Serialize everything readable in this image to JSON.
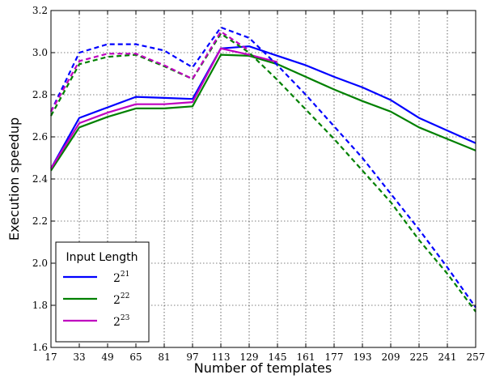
{
  "chart_data": {
    "type": "line",
    "xlabel": "Number of templates",
    "ylabel": "Execution speedup",
    "x": [
      17,
      33,
      49,
      65,
      81,
      97,
      113,
      129,
      145,
      161,
      177,
      193,
      209,
      225,
      241,
      257
    ],
    "xlim": [
      17,
      257
    ],
    "ylim": [
      1.6,
      3.2
    ],
    "yticks": [
      "1.6",
      "1.8",
      "2.0",
      "2.2",
      "2.4",
      "2.6",
      "2.8",
      "3.0",
      "3.2"
    ],
    "xticks": [
      "17",
      "33",
      "49",
      "65",
      "81",
      "97",
      "113",
      "129",
      "145",
      "161",
      "177",
      "193",
      "209",
      "225",
      "241",
      "257"
    ],
    "grid": true,
    "legend": {
      "title": "Input Length",
      "position": "lower-left",
      "entries": [
        {
          "base": "2",
          "exp": "21",
          "color": "#0000ff"
        },
        {
          "base": "2",
          "exp": "22",
          "color": "#008000"
        },
        {
          "base": "2",
          "exp": "23",
          "color": "#bf00bf"
        }
      ]
    },
    "series": [
      {
        "label": "2^21 solid",
        "color": "#0000ff",
        "style": "solid",
        "points": [
          [
            17,
            2.45
          ],
          [
            33,
            2.69
          ],
          [
            49,
            2.74
          ],
          [
            65,
            2.79
          ],
          [
            81,
            2.785
          ],
          [
            97,
            2.78
          ],
          [
            113,
            3.02
          ],
          [
            129,
            3.03
          ],
          [
            145,
            2.985
          ],
          [
            161,
            2.94
          ],
          [
            177,
            2.885
          ],
          [
            193,
            2.835
          ],
          [
            209,
            2.775
          ],
          [
            225,
            2.69
          ],
          [
            241,
            2.63
          ],
          [
            257,
            2.57
          ]
        ]
      },
      {
        "label": "2^22 solid",
        "color": "#008000",
        "style": "solid",
        "points": [
          [
            17,
            2.44
          ],
          [
            33,
            2.645
          ],
          [
            49,
            2.695
          ],
          [
            65,
            2.735
          ],
          [
            81,
            2.735
          ],
          [
            97,
            2.745
          ],
          [
            113,
            2.99
          ],
          [
            129,
            2.985
          ],
          [
            145,
            2.945
          ],
          [
            161,
            2.885
          ],
          [
            177,
            2.825
          ],
          [
            193,
            2.77
          ],
          [
            209,
            2.72
          ],
          [
            225,
            2.645
          ],
          [
            241,
            2.59
          ],
          [
            257,
            2.535
          ]
        ]
      },
      {
        "label": "2^23 solid",
        "color": "#bf00bf",
        "style": "solid",
        "points": [
          [
            17,
            2.45
          ],
          [
            33,
            2.665
          ],
          [
            49,
            2.715
          ],
          [
            65,
            2.755
          ],
          [
            81,
            2.755
          ],
          [
            97,
            2.765
          ],
          [
            113,
            3.02
          ],
          [
            129,
            2.99
          ],
          [
            145,
            2.955
          ]
        ]
      },
      {
        "label": "2^21 dashed",
        "color": "#0000ff",
        "style": "dashed",
        "points": [
          [
            17,
            2.72
          ],
          [
            33,
            3.0
          ],
          [
            49,
            3.04
          ],
          [
            65,
            3.04
          ],
          [
            81,
            3.01
          ],
          [
            97,
            2.93
          ],
          [
            113,
            3.12
          ],
          [
            129,
            3.07
          ],
          [
            145,
            2.94
          ],
          [
            161,
            2.8
          ],
          [
            177,
            2.65
          ],
          [
            193,
            2.5
          ],
          [
            209,
            2.33
          ],
          [
            225,
            2.16
          ],
          [
            241,
            1.98
          ],
          [
            257,
            1.79
          ]
        ]
      },
      {
        "label": "2^22 dashed",
        "color": "#008000",
        "style": "dashed",
        "points": [
          [
            17,
            2.7
          ],
          [
            33,
            2.945
          ],
          [
            49,
            2.98
          ],
          [
            65,
            2.99
          ],
          [
            81,
            2.935
          ],
          [
            97,
            2.875
          ],
          [
            113,
            3.09
          ],
          [
            129,
            3.0
          ],
          [
            145,
            2.87
          ],
          [
            161,
            2.73
          ],
          [
            177,
            2.59
          ],
          [
            193,
            2.44
          ],
          [
            209,
            2.29
          ],
          [
            225,
            2.11
          ],
          [
            241,
            1.95
          ],
          [
            257,
            1.77
          ]
        ]
      },
      {
        "label": "2^23 dashed",
        "color": "#bf00bf",
        "style": "dashed",
        "points": [
          [
            17,
            2.72
          ],
          [
            33,
            2.96
          ],
          [
            49,
            2.995
          ],
          [
            65,
            2.995
          ],
          [
            81,
            2.94
          ],
          [
            97,
            2.875
          ],
          [
            113,
            3.1
          ],
          [
            129,
            3.01
          ]
        ]
      }
    ]
  }
}
